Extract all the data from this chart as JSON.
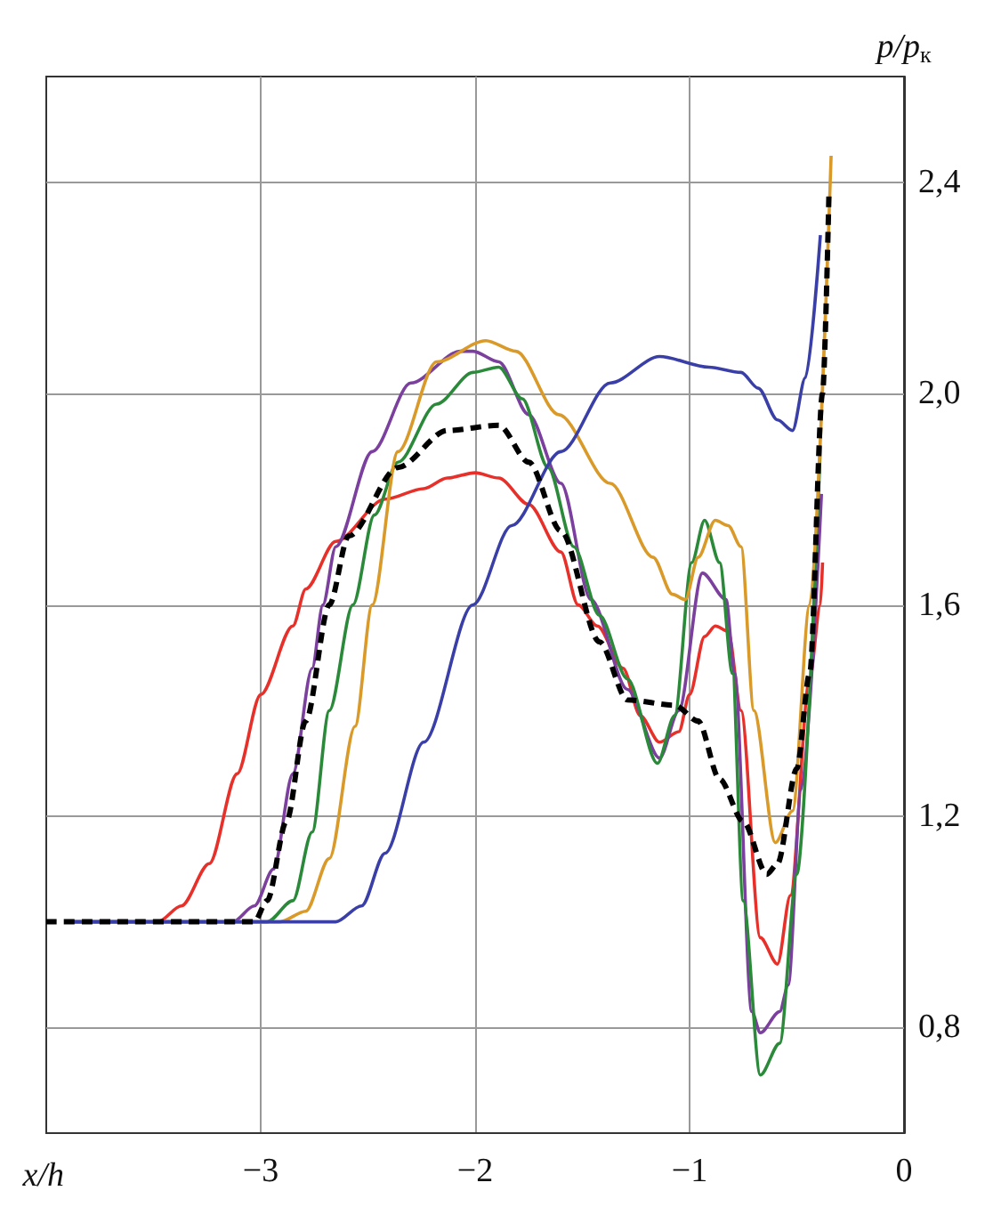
{
  "chart_data": {
    "type": "line",
    "xlabel": "x/h",
    "ylabel": "p/p$_{к}$",
    "xlim": [
      -4,
      0
    ],
    "ylim": [
      0.6,
      2.6
    ],
    "xticks": [
      {
        "value": -3,
        "label": "−3"
      },
      {
        "value": -2,
        "label": "−2"
      },
      {
        "value": -1,
        "label": "−1"
      },
      0
    ],
    "yticks": [
      {
        "value": 0.8,
        "label": "0,8"
      },
      {
        "value": 1.2,
        "label": "1,2"
      },
      {
        "value": 1.6,
        "label": "1,6"
      },
      {
        "value": 2.0,
        "label": "2,0"
      },
      {
        "value": 2.4,
        "label": "2,4"
      }
    ],
    "grid": true,
    "marker": "none",
    "line_style": "solid",
    "series": [
      {
        "color": "#e8302a",
        "x": [
          -3.91,
          -3.48,
          -3.37,
          -3.24,
          -3.11,
          -3.0,
          -2.85,
          -2.79,
          -2.65,
          -2.42,
          -2.24,
          -2.13,
          -2.0,
          -1.89,
          -1.75,
          -1.6,
          -1.52,
          -1.43,
          -1.31,
          -1.23,
          -1.14,
          -1.05,
          -1.0,
          -0.93,
          -0.88,
          -0.82,
          -0.76,
          -0.67,
          -0.59,
          -0.53,
          -0.44,
          -0.39,
          -0.38
        ],
        "values": [
          1.0,
          1.0,
          1.03,
          1.11,
          1.28,
          1.43,
          1.56,
          1.63,
          1.72,
          1.8,
          1.82,
          1.84,
          1.85,
          1.84,
          1.79,
          1.7,
          1.6,
          1.56,
          1.48,
          1.39,
          1.34,
          1.36,
          1.43,
          1.54,
          1.56,
          1.55,
          1.4,
          0.97,
          0.92,
          1.05,
          1.46,
          1.6,
          1.68
        ]
      },
      {
        "color": "#7b3f9e",
        "x": [
          -3.91,
          -3.13,
          -3.03,
          -2.94,
          -2.85,
          -2.76,
          -2.71,
          -2.65,
          -2.48,
          -2.3,
          -2.07,
          -2.01,
          -1.89,
          -1.75,
          -1.6,
          -1.46,
          -1.29,
          -1.14,
          -1.05,
          -0.94,
          -0.83,
          -0.79,
          -0.71,
          -0.67,
          -0.58,
          -0.54,
          -0.48,
          -0.385
        ],
        "values": [
          1.0,
          1.0,
          1.03,
          1.1,
          1.28,
          1.48,
          1.6,
          1.71,
          1.89,
          2.02,
          2.08,
          2.08,
          2.06,
          1.96,
          1.83,
          1.61,
          1.44,
          1.31,
          1.4,
          1.66,
          1.61,
          1.47,
          0.83,
          0.79,
          0.83,
          0.88,
          1.25,
          1.81
        ]
      },
      {
        "color": "#2a8a3a",
        "x": [
          -3.91,
          -2.97,
          -2.85,
          -2.76,
          -2.68,
          -2.57,
          -2.47,
          -2.36,
          -2.18,
          -2.01,
          -1.89,
          -1.78,
          -1.66,
          -1.54,
          -1.42,
          -1.29,
          -1.15,
          -1.07,
          -0.99,
          -0.93,
          -0.86,
          -0.8,
          -0.75,
          -0.67,
          -0.58,
          -0.5,
          -0.39
        ],
        "values": [
          1.0,
          1.0,
          1.04,
          1.17,
          1.4,
          1.6,
          1.77,
          1.87,
          1.98,
          2.04,
          2.05,
          1.99,
          1.86,
          1.71,
          1.58,
          1.46,
          1.3,
          1.39,
          1.68,
          1.76,
          1.68,
          1.47,
          1.04,
          0.71,
          0.77,
          1.09,
          1.9
        ]
      },
      {
        "color": "#d99a2a",
        "x": [
          -3.91,
          -2.91,
          -2.79,
          -2.68,
          -2.56,
          -2.48,
          -2.36,
          -2.18,
          -1.95,
          -1.81,
          -1.61,
          -1.37,
          -1.17,
          -1.08,
          -1.02,
          -0.96,
          -0.88,
          -0.82,
          -0.76,
          -0.7,
          -0.6,
          -0.52,
          -0.44,
          -0.34
        ],
        "values": [
          1.0,
          1.0,
          1.02,
          1.12,
          1.37,
          1.6,
          1.89,
          2.06,
          2.1,
          2.08,
          1.96,
          1.83,
          1.69,
          1.62,
          1.61,
          1.69,
          1.76,
          1.75,
          1.71,
          1.4,
          1.15,
          1.21,
          1.6,
          2.45
        ]
      },
      {
        "color": "#3a3fa8",
        "x": [
          -3.91,
          -2.65,
          -2.53,
          -2.42,
          -2.24,
          -2.01,
          -1.83,
          -1.6,
          -1.37,
          -1.14,
          -0.91,
          -0.76,
          -0.68,
          -0.59,
          -0.52,
          -0.46,
          -0.39
        ],
        "values": [
          1.0,
          1.0,
          1.03,
          1.13,
          1.34,
          1.6,
          1.75,
          1.89,
          2.02,
          2.07,
          2.05,
          2.04,
          2.01,
          1.95,
          1.93,
          2.03,
          2.3
        ]
      },
      {
        "color": "#000000",
        "line_style": "dashed",
        "x": [
          -4.0,
          -3.03,
          -2.97,
          -2.88,
          -2.79,
          -2.68,
          -2.59,
          -2.36,
          -2.13,
          -1.89,
          -1.75,
          -1.6,
          -1.42,
          -1.29,
          -1.07,
          -0.96,
          -0.86,
          -0.75,
          -0.64,
          -0.59,
          -0.5,
          -0.44,
          -0.38,
          -0.35
        ],
        "values": [
          1.0,
          1.0,
          1.04,
          1.19,
          1.38,
          1.6,
          1.73,
          1.86,
          1.93,
          1.94,
          1.87,
          1.74,
          1.53,
          1.42,
          1.41,
          1.38,
          1.27,
          1.19,
          1.09,
          1.11,
          1.29,
          1.47,
          2.0,
          2.38
        ]
      }
    ]
  }
}
